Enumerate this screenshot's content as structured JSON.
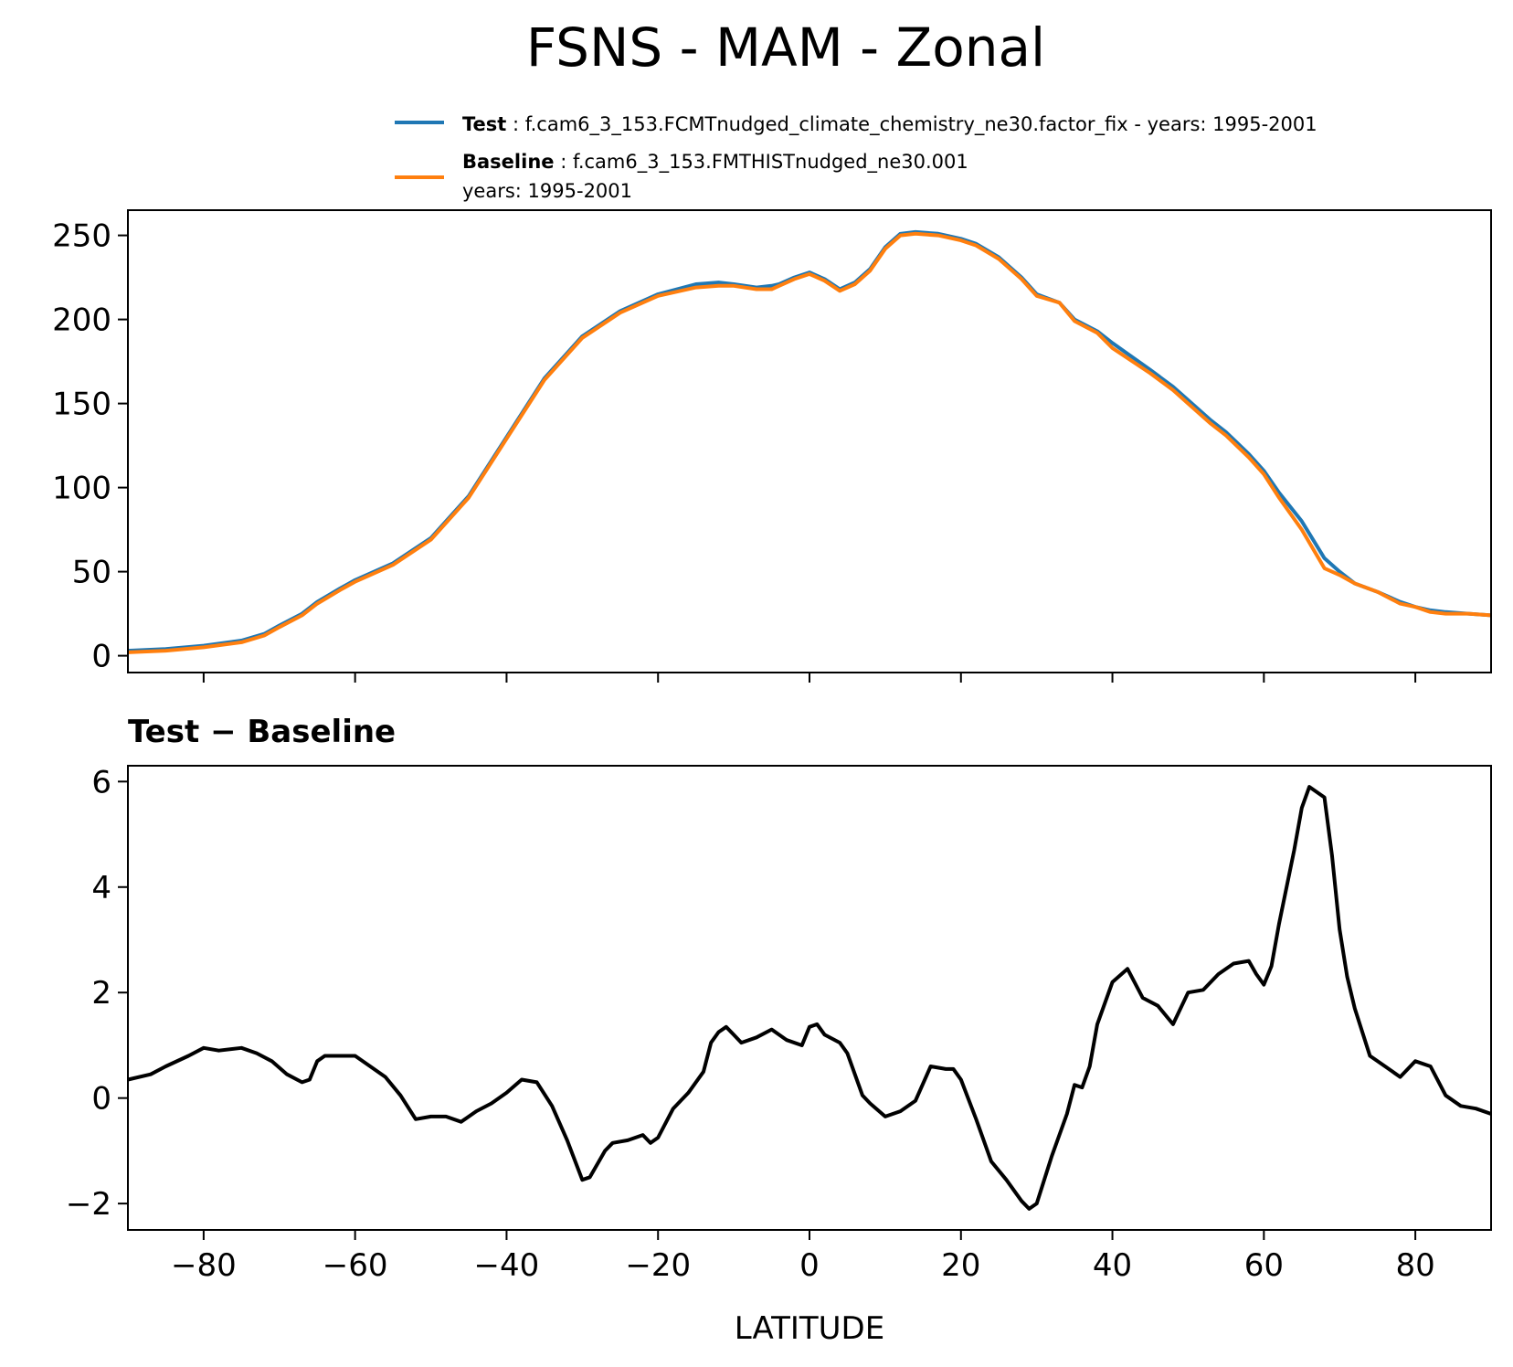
{
  "figure": {
    "title": "FSNS - MAM - Zonal"
  },
  "legend": {
    "test_label": "Test",
    "test_text": ": f.cam6_3_153.FCMTnudged_climate_chemistry_ne30.factor_fix - years: 1995-2001",
    "baseline_label": "Baseline",
    "baseline_text": ": f.cam6_3_153.FMTHISTnudged_ne30.001",
    "baseline_text2": "years: 1995-2001"
  },
  "colors": {
    "test": "#1f77b4",
    "baseline": "#ff7f0e",
    "diff": "#000000"
  },
  "chart_data": [
    {
      "type": "line",
      "title": "",
      "xlabel": "",
      "ylabel": "",
      "xlim": [
        -90,
        90
      ],
      "ylim": [
        -10,
        265
      ],
      "yticks": [
        "0",
        "50",
        "100",
        "150",
        "200",
        "250"
      ],
      "ytick_values": [
        0,
        50,
        100,
        150,
        200,
        250
      ],
      "xtick_values": [
        -80,
        -60,
        -40,
        -20,
        0,
        20,
        40,
        60,
        80
      ],
      "x": [
        -90,
        -85,
        -80,
        -75,
        -72,
        -70,
        -67,
        -65,
        -62,
        -60,
        -55,
        -50,
        -45,
        -40,
        -35,
        -30,
        -25,
        -20,
        -15,
        -12,
        -10,
        -7,
        -5,
        -4,
        -2,
        0,
        2,
        4,
        6,
        8,
        10,
        12,
        14,
        17,
        20,
        22,
        25,
        28,
        30,
        33,
        35,
        38,
        40,
        45,
        48,
        50,
        53,
        55,
        58,
        60,
        62,
        65,
        68,
        70,
        72,
        75,
        78,
        80,
        82,
        84,
        87,
        90
      ],
      "series": [
        {
          "name": "Test",
          "values": [
            3,
            4,
            6,
            9,
            13,
            18,
            25,
            32,
            40,
            45,
            55,
            70,
            95,
            130,
            165,
            190,
            205,
            215,
            221,
            222,
            221,
            219,
            220,
            221,
            225,
            228,
            224,
            218,
            222,
            230,
            243,
            251,
            252,
            251,
            248,
            245,
            237,
            225,
            215,
            210,
            200,
            193,
            186,
            170,
            160,
            152,
            140,
            133,
            120,
            110,
            97,
            80,
            58,
            50,
            43,
            38,
            32,
            29,
            27,
            26,
            25,
            24
          ]
        },
        {
          "name": "Baseline",
          "values": [
            2,
            3,
            5,
            8,
            12,
            17,
            24,
            31,
            39,
            44,
            54,
            69,
            94,
            129,
            164,
            189,
            204,
            214,
            219,
            220,
            220,
            218,
            218,
            220,
            224,
            227,
            223,
            217,
            221,
            229,
            242,
            250,
            251,
            250,
            247,
            244,
            236,
            224,
            214,
            210,
            199,
            192,
            183,
            168,
            158,
            150,
            138,
            131,
            118,
            108,
            94,
            75,
            52,
            48,
            43,
            38,
            31,
            29,
            26,
            25,
            25,
            24
          ]
        }
      ]
    },
    {
      "type": "line",
      "title": "Test − Baseline",
      "xlabel": "LATITUDE",
      "ylabel": "",
      "xlim": [
        -90,
        90
      ],
      "ylim": [
        -2.5,
        6.3
      ],
      "yticks": [
        "−2",
        "0",
        "2",
        "4",
        "6"
      ],
      "ytick_values": [
        -2,
        0,
        2,
        4,
        6
      ],
      "xticks": [
        "−80",
        "−60",
        "−40",
        "−20",
        "0",
        "20",
        "40",
        "60",
        "80"
      ],
      "xtick_values": [
        -80,
        -60,
        -40,
        -20,
        0,
        20,
        40,
        60,
        80
      ],
      "x": [
        -90,
        -87,
        -85,
        -82,
        -80,
        -78,
        -75,
        -73,
        -71,
        -69,
        -67,
        -66,
        -65,
        -64,
        -62,
        -60,
        -58,
        -56,
        -54,
        -52,
        -50,
        -48,
        -46,
        -44,
        -42,
        -40,
        -38,
        -36,
        -34,
        -32,
        -30,
        -29,
        -27,
        -26,
        -24,
        -22,
        -21,
        -20,
        -18,
        -16,
        -14,
        -13,
        -12,
        -11,
        -10,
        -9,
        -7,
        -5,
        -3,
        -1,
        0,
        1,
        2,
        4,
        5,
        7,
        8,
        10,
        12,
        14,
        16,
        18,
        19,
        20,
        22,
        24,
        26,
        28,
        29,
        30,
        32,
        34,
        35,
        36,
        37,
        38,
        40,
        42,
        44,
        46,
        48,
        50,
        52,
        54,
        56,
        58,
        59,
        60,
        61,
        62,
        64,
        65,
        66,
        68,
        69,
        70,
        71,
        72,
        74,
        76,
        78,
        80,
        82,
        84,
        86,
        88,
        90
      ],
      "series": [
        {
          "name": "",
          "values": [
            0.35,
            0.45,
            0.6,
            0.8,
            0.95,
            0.9,
            0.95,
            0.85,
            0.7,
            0.45,
            0.3,
            0.35,
            0.7,
            0.8,
            0.8,
            0.8,
            0.6,
            0.4,
            0.05,
            -0.4,
            -0.35,
            -0.35,
            -0.45,
            -0.25,
            -0.1,
            0.1,
            0.35,
            0.3,
            -0.15,
            -0.8,
            -1.55,
            -1.5,
            -1.0,
            -0.85,
            -0.8,
            -0.7,
            -0.85,
            -0.75,
            -0.2,
            0.1,
            0.5,
            1.05,
            1.25,
            1.35,
            1.2,
            1.05,
            1.15,
            1.3,
            1.1,
            1.0,
            1.35,
            1.4,
            1.2,
            1.05,
            0.85,
            0.05,
            -0.1,
            -0.35,
            -0.25,
            -0.05,
            0.6,
            0.55,
            0.55,
            0.35,
            -0.4,
            -1.2,
            -1.55,
            -1.95,
            -2.1,
            -2.0,
            -1.1,
            -0.3,
            0.25,
            0.2,
            0.6,
            1.4,
            2.2,
            2.45,
            1.9,
            1.75,
            1.4,
            2.0,
            2.05,
            2.35,
            2.55,
            2.6,
            2.35,
            2.15,
            2.5,
            3.3,
            4.7,
            5.5,
            5.9,
            5.7,
            4.6,
            3.2,
            2.3,
            1.7,
            0.8,
            0.6,
            0.4,
            0.7,
            0.6,
            0.05,
            -0.15,
            -0.2,
            -0.3
          ]
        }
      ]
    }
  ]
}
